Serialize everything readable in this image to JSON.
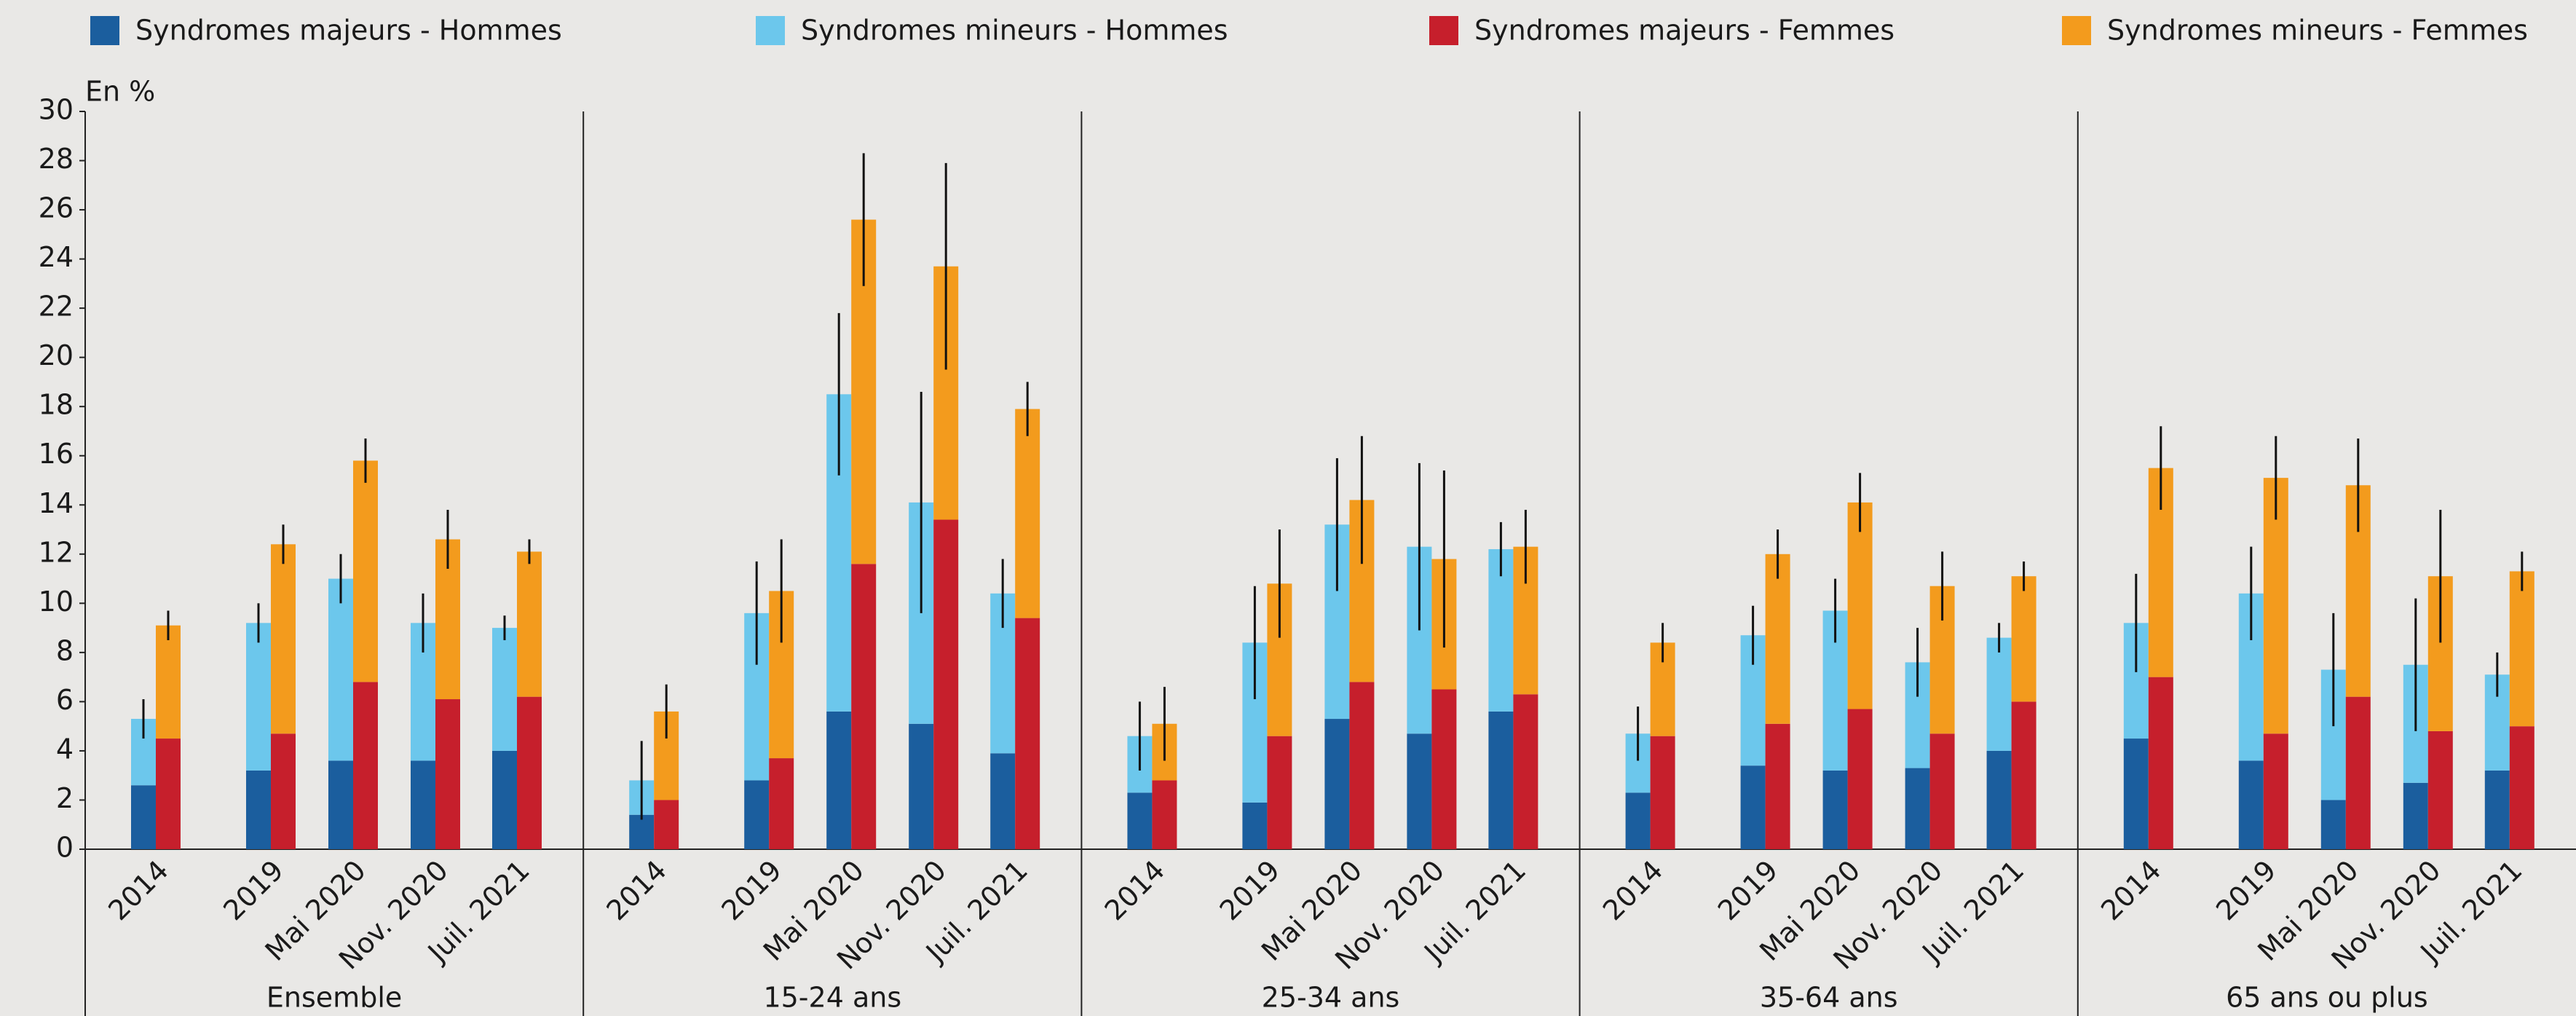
{
  "chart_data": {
    "type": "stacked-bar",
    "y_label": "En %",
    "groups": [
      "Ensemble",
      "15-24 ans",
      "25-34 ans",
      "35-64 ans",
      "65 ans ou plus"
    ],
    "categories": [
      "2014",
      "2019",
      "Mai 2020",
      "Nov. 2020",
      "Juil. 2021",
      "2014",
      "2019",
      "Mai 2020",
      "Nov. 2020",
      "Juil. 2021",
      "2014",
      "2019",
      "Mai 2020",
      "Nov. 2020",
      "Juil. 2021",
      "2014",
      "2019",
      "Mai 2020",
      "Nov. 2020",
      "Juil. 2021",
      "2014",
      "2019",
      "Mai 2020",
      "Nov. 2020",
      "Juil. 2021"
    ],
    "series": [
      {
        "name": "Syndromes majeurs - Hommes",
        "color": "#1b5e9e",
        "stack": "Hommes",
        "values": [
          2.6,
          3.2,
          3.6,
          3.6,
          4.0,
          1.4,
          2.8,
          5.6,
          5.1,
          3.9,
          2.3,
          1.9,
          5.3,
          4.7,
          5.6,
          2.3,
          3.4,
          3.2,
          3.3,
          4.0,
          4.5,
          3.6,
          2.0,
          2.7,
          3.2
        ]
      },
      {
        "name": "Syndromes mineurs - Hommes",
        "color": "#6cc7ec",
        "stack": "Hommes",
        "values": [
          2.7,
          6.0,
          7.4,
          5.6,
          5.0,
          1.4,
          6.8,
          12.9,
          9.0,
          6.5,
          2.3,
          6.5,
          7.9,
          7.6,
          6.6,
          2.4,
          5.3,
          6.5,
          4.3,
          4.6,
          4.7,
          6.8,
          5.3,
          4.8,
          3.9
        ],
        "errors": [
          0.8,
          0.8,
          1.0,
          1.2,
          0.5,
          1.6,
          2.1,
          3.3,
          4.5,
          1.4,
          1.4,
          2.3,
          2.7,
          3.4,
          1.1,
          1.1,
          1.2,
          1.3,
          1.4,
          0.6,
          2.0,
          1.9,
          2.3,
          2.7,
          0.9
        ]
      },
      {
        "name": "Syndromes majeurs - Femmes",
        "color": "#c61f2c",
        "stack": "Femmes",
        "values": [
          4.5,
          4.7,
          6.8,
          6.1,
          6.2,
          2.0,
          3.7,
          11.6,
          13.4,
          9.4,
          2.8,
          4.6,
          6.8,
          6.5,
          6.3,
          4.6,
          5.1,
          5.7,
          4.7,
          6.0,
          7.0,
          4.7,
          6.2,
          4.8,
          5.0
        ]
      },
      {
        "name": "Syndromes mineurs - Femmes",
        "color": "#f39b1d",
        "stack": "Femmes",
        "values": [
          4.6,
          7.7,
          9.0,
          6.5,
          5.9,
          3.6,
          6.8,
          14.0,
          10.3,
          8.5,
          2.3,
          6.2,
          7.4,
          5.3,
          6.0,
          3.8,
          6.9,
          8.4,
          6.0,
          5.1,
          8.5,
          10.4,
          8.6,
          6.3,
          6.3
        ],
        "errors": [
          0.6,
          0.8,
          0.9,
          1.2,
          0.5,
          1.1,
          2.1,
          2.7,
          4.2,
          1.1,
          1.5,
          2.2,
          2.6,
          3.6,
          1.5,
          0.8,
          1.0,
          1.2,
          1.4,
          0.6,
          1.7,
          1.7,
          1.9,
          2.7,
          0.8
        ]
      }
    ],
    "ylim": [
      0,
      30
    ],
    "yticks": [
      0,
      2,
      4,
      6,
      8,
      10,
      12,
      14,
      16,
      18,
      20,
      22,
      24,
      26,
      28,
      30
    ],
    "grid": false
  }
}
